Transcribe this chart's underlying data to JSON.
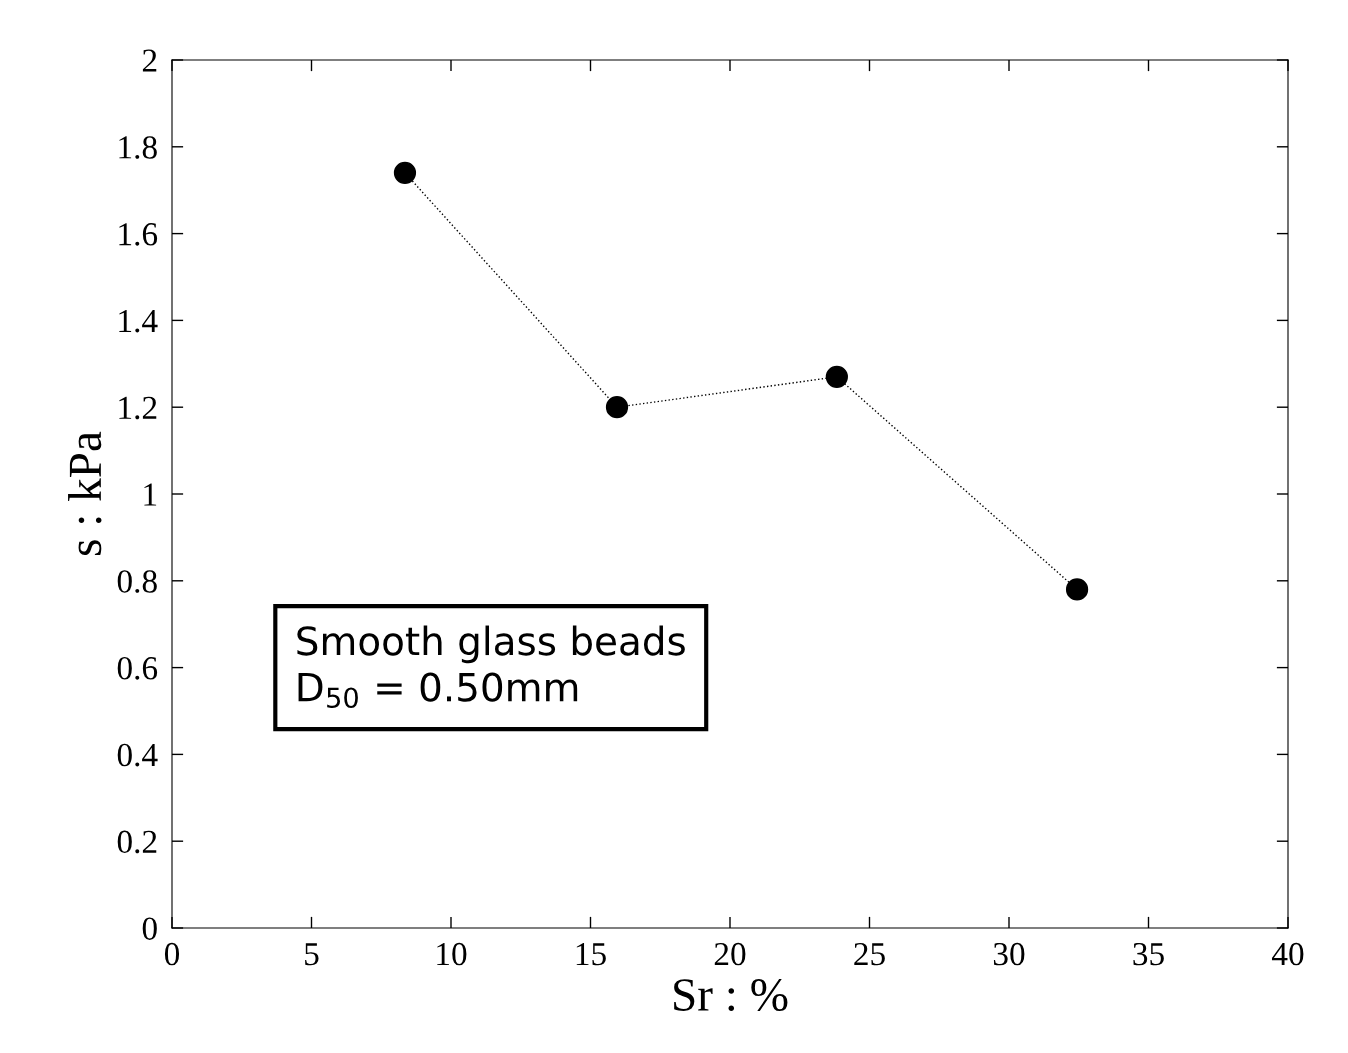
{
  "chart_data": {
    "type": "line",
    "xlabel": "Sr : %",
    "ylabel": "s : kPa",
    "x": [
      8.35,
      15.95,
      23.83,
      32.44
    ],
    "series": [
      {
        "color": "#000000",
        "values": [
          1.74,
          1.2,
          1.27,
          0.78
        ]
      }
    ],
    "marker": "circle",
    "line_style": "dotted",
    "grid": false,
    "xlim": [
      0,
      40
    ],
    "xticks": [
      0,
      5,
      10,
      15,
      20,
      25,
      30,
      35,
      40
    ],
    "ylim": [
      0,
      2
    ],
    "yticks": [
      0,
      {
        "value": 0.2,
        "label": "0.2"
      },
      {
        "value": 0.4,
        "label": "0.4"
      },
      {
        "value": 0.6,
        "label": "0.6"
      },
      {
        "value": 0.8,
        "label": "0.8"
      },
      1,
      {
        "value": 1.2,
        "label": "1.2"
      },
      {
        "value": 1.4,
        "label": "1.4"
      },
      {
        "value": 1.6,
        "label": "1.6"
      },
      {
        "value": 1.8,
        "label": "1.8"
      },
      2
    ],
    "annotations": [
      "Smooth glass beads\nD$_{50}$ = 0.50mm"
    ]
  }
}
